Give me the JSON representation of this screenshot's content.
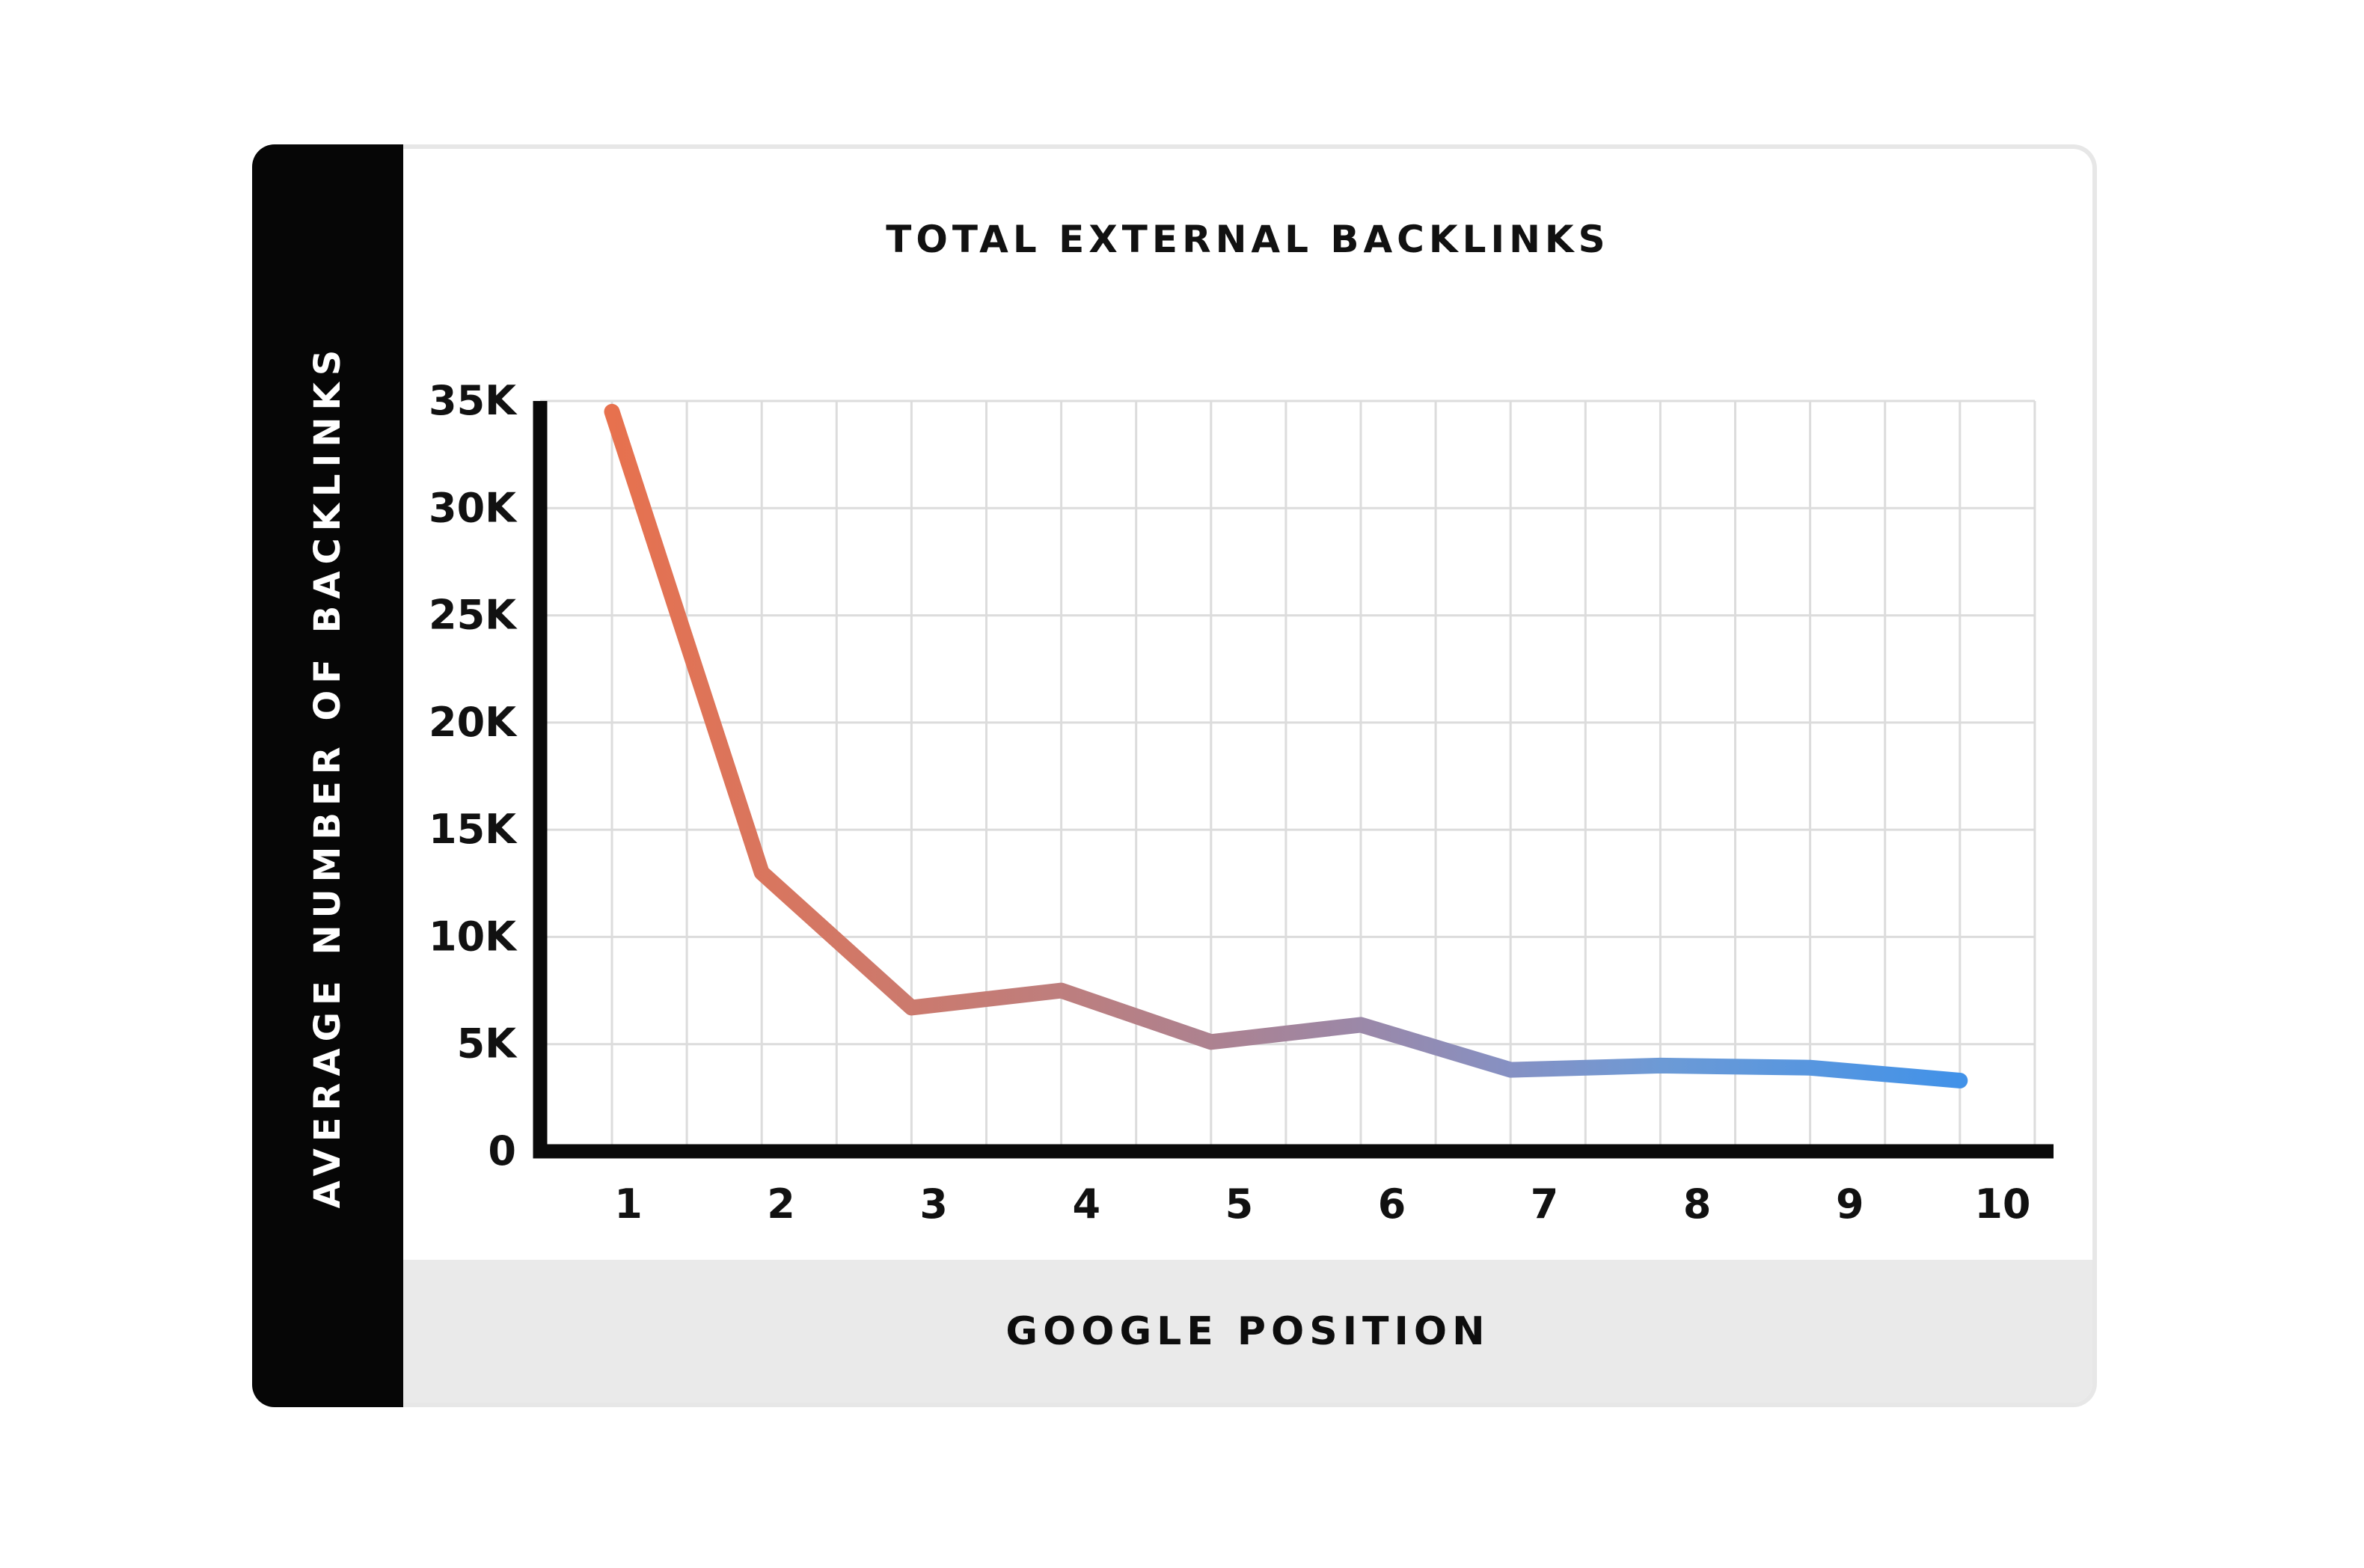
{
  "figure": {
    "title": "TOTAL EXTERNAL BACKLINKS",
    "x_axis_label": "GOOGLE POSITION",
    "y_axis_label": "AVERAGE NUMBER OF BACKLINKS"
  },
  "chart_data": {
    "type": "line",
    "title": "TOTAL EXTERNAL BACKLINKS",
    "xlabel": "GOOGLE POSITION",
    "ylabel": "AVERAGE NUMBER OF BACKLINKS",
    "x": [
      1,
      2,
      3,
      4,
      5,
      6,
      7,
      8,
      9,
      10
    ],
    "x_tick_labels": [
      "1",
      "2",
      "3",
      "4",
      "5",
      "6",
      "7",
      "8",
      "9",
      "10"
    ],
    "values": [
      34500,
      13000,
      6700,
      7500,
      5100,
      5900,
      3800,
      4000,
      3900,
      3300
    ],
    "y_tick_values": [
      0,
      5000,
      10000,
      15000,
      20000,
      25000,
      30000,
      35000
    ],
    "y_tick_labels": [
      "0",
      "5K",
      "10K",
      "15K",
      "20K",
      "25K",
      "30K",
      "35K"
    ],
    "ylim": [
      0,
      35000
    ],
    "grid": true,
    "legend": "none",
    "line_gradient": [
      {
        "offset": 0.0,
        "color": "#E7714E"
      },
      {
        "offset": 0.33,
        "color": "#BE7E7D"
      },
      {
        "offset": 0.45,
        "color": "#AC8291"
      },
      {
        "offset": 0.56,
        "color": "#9A88A9"
      },
      {
        "offset": 0.67,
        "color": "#8591C4"
      },
      {
        "offset": 0.78,
        "color": "#6C9AD6"
      },
      {
        "offset": 1.0,
        "color": "#4292E8"
      }
    ]
  },
  "colors": {
    "sidebar_bg": "#060606",
    "sidebar_text": "#ffffff",
    "card_bg": "#ffffff",
    "card_border": "#e7e7e7",
    "footer_bg": "#eaeaea",
    "grid_line": "#dcdcdc",
    "axis": "#0a0a0a",
    "text": "#111111"
  }
}
